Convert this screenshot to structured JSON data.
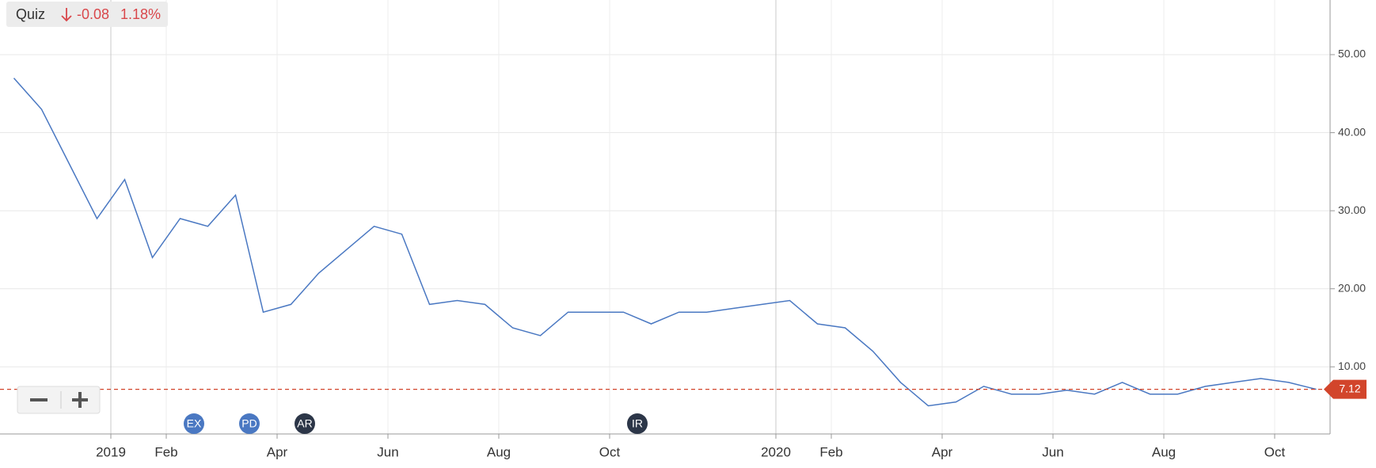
{
  "quote_box": {
    "symbol": "Quiz",
    "change": -0.08,
    "change_percent": "1.18%"
  },
  "chart_data": {
    "type": "line",
    "x": [
      "2018-11",
      "2018-11",
      "2018-12",
      "2018-12",
      "2019-01",
      "2019-01",
      "2019-02",
      "2019-02",
      "2019-03",
      "2019-03",
      "2019-04",
      "2019-04",
      "2019-05",
      "2019-05",
      "2019-06",
      "2019-06",
      "2019-07",
      "2019-07",
      "2019-08",
      "2019-08",
      "2019-09",
      "2019-09",
      "2019-10",
      "2019-10",
      "2019-11",
      "2019-11",
      "2019-12",
      "2019-12",
      "2020-01",
      "2020-01",
      "2020-02",
      "2020-02",
      "2020-03",
      "2020-03",
      "2020-04",
      "2020-04",
      "2020-05",
      "2020-05",
      "2020-06",
      "2020-06",
      "2020-07",
      "2020-07",
      "2020-08",
      "2020-08",
      "2020-09",
      "2020-09",
      "2020-10",
      "2020-10"
    ],
    "series": [
      {
        "color": "#4a78c2",
        "values": [
          47,
          43,
          36,
          29,
          34,
          24,
          29,
          28,
          32,
          17,
          18,
          22,
          25,
          28,
          27,
          18,
          18.5,
          18,
          15,
          14,
          17,
          17,
          17,
          15.5,
          17,
          17,
          17.5,
          18,
          18.5,
          15.5,
          15,
          12,
          8,
          5,
          5.5,
          7.5,
          6.5,
          6.5,
          7,
          6.5,
          8,
          6.5,
          6.5,
          7.5,
          8,
          8.5,
          8,
          7.12
        ]
      }
    ],
    "xlim": [
      "2018-11",
      "2020-10"
    ],
    "xticks": [
      {
        "value": "2019-01",
        "label": "2019"
      },
      {
        "value": "2019-02",
        "label": "Feb"
      },
      {
        "value": "2019-04",
        "label": "Apr"
      },
      {
        "value": "2019-06",
        "label": "Jun"
      },
      {
        "value": "2019-08",
        "label": "Aug"
      },
      {
        "value": "2019-10",
        "label": "Oct"
      },
      {
        "value": "2020-01",
        "label": "2020"
      },
      {
        "value": "2020-02",
        "label": "Feb"
      },
      {
        "value": "2020-04",
        "label": "Apr"
      },
      {
        "value": "2020-06",
        "label": "Jun"
      },
      {
        "value": "2020-08",
        "label": "Aug"
      },
      {
        "value": "2020-10",
        "label": "Oct"
      }
    ],
    "ylim": [
      1.4,
      57
    ],
    "yticks": [
      {
        "value": 10,
        "label": "10.00"
      },
      {
        "value": 20,
        "label": "20.00"
      },
      {
        "value": 30,
        "label": "30.00"
      },
      {
        "value": 40,
        "label": "40.00"
      },
      {
        "value": 50,
        "label": "50.00"
      }
    ],
    "grid": true,
    "current_price": 7.12,
    "current_price_color": "#d2452b",
    "events": [
      {
        "label": "EX",
        "x": "2019-02",
        "color": "#4a78c2"
      },
      {
        "label": "PD",
        "x": "2019-03",
        "color": "#4a78c2"
      },
      {
        "label": "AR",
        "x": "2019-04",
        "color": "#2c3648"
      },
      {
        "label": "IR",
        "x": "2019-10",
        "color": "#2c3648"
      }
    ]
  }
}
